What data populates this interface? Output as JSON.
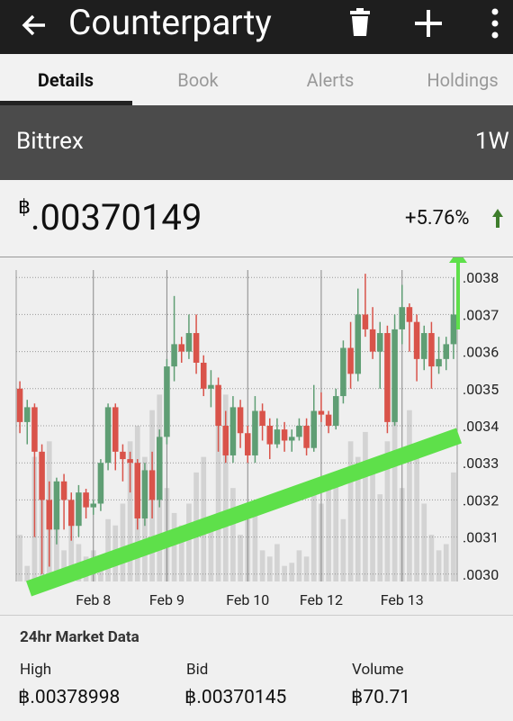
{
  "app_bar": {
    "title": "Counterparty"
  },
  "tabs": [
    "Details",
    "Book",
    "Alerts",
    "Holdings"
  ],
  "exchange": {
    "name": "Bittrex",
    "period": "1W"
  },
  "ticker": {
    "symbol": "฿",
    "price": ".00370149",
    "change": "+5.76%"
  },
  "chart_data": {
    "type": "candlestick",
    "categories": [
      null,
      null,
      null,
      null,
      null,
      null,
      null,
      null,
      null,
      null,
      "Feb 8",
      null,
      null,
      null,
      null,
      null,
      null,
      null,
      null,
      null,
      "Feb 9",
      null,
      null,
      null,
      null,
      null,
      null,
      null,
      null,
      null,
      null,
      "Feb 10",
      null,
      null,
      null,
      null,
      null,
      null,
      null,
      null,
      null,
      "Feb 12",
      null,
      null,
      null,
      null,
      null,
      null,
      null,
      null,
      null,
      null,
      "Feb 13",
      null,
      null,
      null,
      null,
      null,
      null,
      null
    ],
    "open": [
      0.0035,
      0.00341,
      0.00345,
      0.00333,
      0.0032,
      0.00312,
      0.00325,
      0.0032,
      0.00313,
      0.00322,
      0.00318,
      0.00319,
      0.0033,
      0.00345,
      0.00333,
      0.00331,
      0.0033,
      0.00315,
      0.00328,
      0.0032,
      0.00337,
      0.00356,
      0.00362,
      0.0036,
      0.00365,
      0.00357,
      0.0035,
      0.00351,
      0.0034,
      0.00332,
      0.00345,
      0.00338,
      0.00332,
      0.00344,
      0.0034,
      0.00335,
      0.00339,
      0.00336,
      0.00337,
      0.0034,
      0.00334,
      0.00344,
      0.00343,
      0.0034,
      0.00348,
      0.00361,
      0.00354,
      0.0037,
      0.00366,
      0.0036,
      0.00365,
      0.00341,
      0.00366,
      0.00372,
      0.00368,
      0.00358,
      0.00365,
      0.00356,
      0.00358,
      0.00362
    ],
    "high": [
      0.00352,
      0.00347,
      0.00346,
      0.00335,
      0.00325,
      0.00326,
      0.00327,
      0.00322,
      0.00324,
      0.00323,
      0.0032,
      0.00331,
      0.00346,
      0.00346,
      0.00335,
      0.00333,
      0.00331,
      0.0033,
      0.00333,
      0.00339,
      0.00358,
      0.00375,
      0.00364,
      0.0037,
      0.0037,
      0.00359,
      0.00355,
      0.00353,
      0.00344,
      0.00348,
      0.00347,
      0.0034,
      0.00348,
      0.00346,
      0.00342,
      0.00342,
      0.00341,
      0.00339,
      0.00342,
      0.00342,
      0.00351,
      0.00349,
      0.00344,
      0.0035,
      0.00363,
      0.00368,
      0.00377,
      0.00381,
      0.00372,
      0.00368,
      0.00367,
      0.0037,
      0.00378,
      0.00373,
      0.0037,
      0.00367,
      0.00368,
      0.00364,
      0.00364,
      0.0038
    ],
    "low": [
      0.00338,
      0.00335,
      0.0031,
      0.003,
      0.00302,
      0.00308,
      0.00312,
      0.00309,
      0.0031,
      0.00315,
      0.00316,
      0.00317,
      0.00328,
      0.00328,
      0.00325,
      0.00322,
      0.00312,
      0.00313,
      0.00315,
      0.00318,
      0.00335,
      0.00352,
      0.00357,
      0.00358,
      0.00354,
      0.00348,
      0.00345,
      0.00333,
      0.0033,
      0.0033,
      0.00334,
      0.0033,
      0.0033,
      0.00336,
      0.00331,
      0.00334,
      0.00333,
      0.00333,
      0.00336,
      0.00332,
      0.00333,
      0.00341,
      0.00338,
      0.00339,
      0.00346,
      0.0035,
      0.00352,
      0.00364,
      0.00358,
      0.0035,
      0.00338,
      0.0034,
      0.00362,
      0.0036,
      0.00352,
      0.00355,
      0.0035,
      0.00354,
      0.00355,
      0.00358
    ],
    "close": [
      0.00341,
      0.00345,
      0.00333,
      0.0032,
      0.00312,
      0.00325,
      0.0032,
      0.00313,
      0.00322,
      0.00318,
      0.00319,
      0.0033,
      0.00345,
      0.00333,
      0.00331,
      0.0033,
      0.00315,
      0.00328,
      0.0032,
      0.00337,
      0.00356,
      0.00362,
      0.0036,
      0.00365,
      0.00357,
      0.0035,
      0.00351,
      0.0034,
      0.00332,
      0.00345,
      0.00338,
      0.00332,
      0.00344,
      0.0034,
      0.00335,
      0.00339,
      0.00336,
      0.00337,
      0.0034,
      0.00334,
      0.00344,
      0.00343,
      0.0034,
      0.00348,
      0.00361,
      0.00354,
      0.0037,
      0.00366,
      0.0036,
      0.00365,
      0.00341,
      0.00366,
      0.00372,
      0.00368,
      0.00358,
      0.00365,
      0.00356,
      0.00358,
      0.00362,
      0.0037
    ],
    "volume": [
      15,
      5,
      40,
      30,
      45,
      20,
      10,
      25,
      12,
      8,
      10,
      6,
      20,
      18,
      25,
      45,
      50,
      40,
      55,
      60,
      30,
      22,
      18,
      25,
      35,
      40,
      20,
      55,
      60,
      30,
      15,
      20,
      25,
      10,
      8,
      12,
      5,
      6,
      10,
      8,
      28,
      25,
      30,
      35,
      20,
      45,
      40,
      48,
      38,
      28,
      45,
      60,
      30,
      55,
      42,
      25,
      15,
      10,
      12,
      35
    ],
    "up_color": "#5f9e74",
    "down_color": "#d9534a",
    "volume_color": "#d3d3d3",
    "ylim": [
      0.00298,
      0.00382
    ],
    "yticks": [
      {
        "value": 0.003,
        "label": ".0030"
      },
      {
        "value": 0.0031,
        "label": ".0031"
      },
      {
        "value": 0.0032,
        "label": ".0032"
      },
      {
        "value": 0.0033,
        "label": ".0033"
      },
      {
        "value": 0.0034,
        "label": ".0034"
      },
      {
        "value": 0.0035,
        "label": ".0035"
      },
      {
        "value": 0.0036,
        "label": ".0036"
      },
      {
        "value": 0.0037,
        "label": ".0037"
      },
      {
        "value": 0.0038,
        "label": ".0038"
      }
    ],
    "y2lim": [
      0,
      100
    ],
    "grid": true
  },
  "market_data": {
    "title": "24hr Market Data",
    "items": [
      {
        "label": "High",
        "value": "฿.00378998"
      },
      {
        "label": "Bid",
        "value": "฿.00370145"
      },
      {
        "label": "Volume",
        "value": "฿70.71"
      }
    ]
  }
}
